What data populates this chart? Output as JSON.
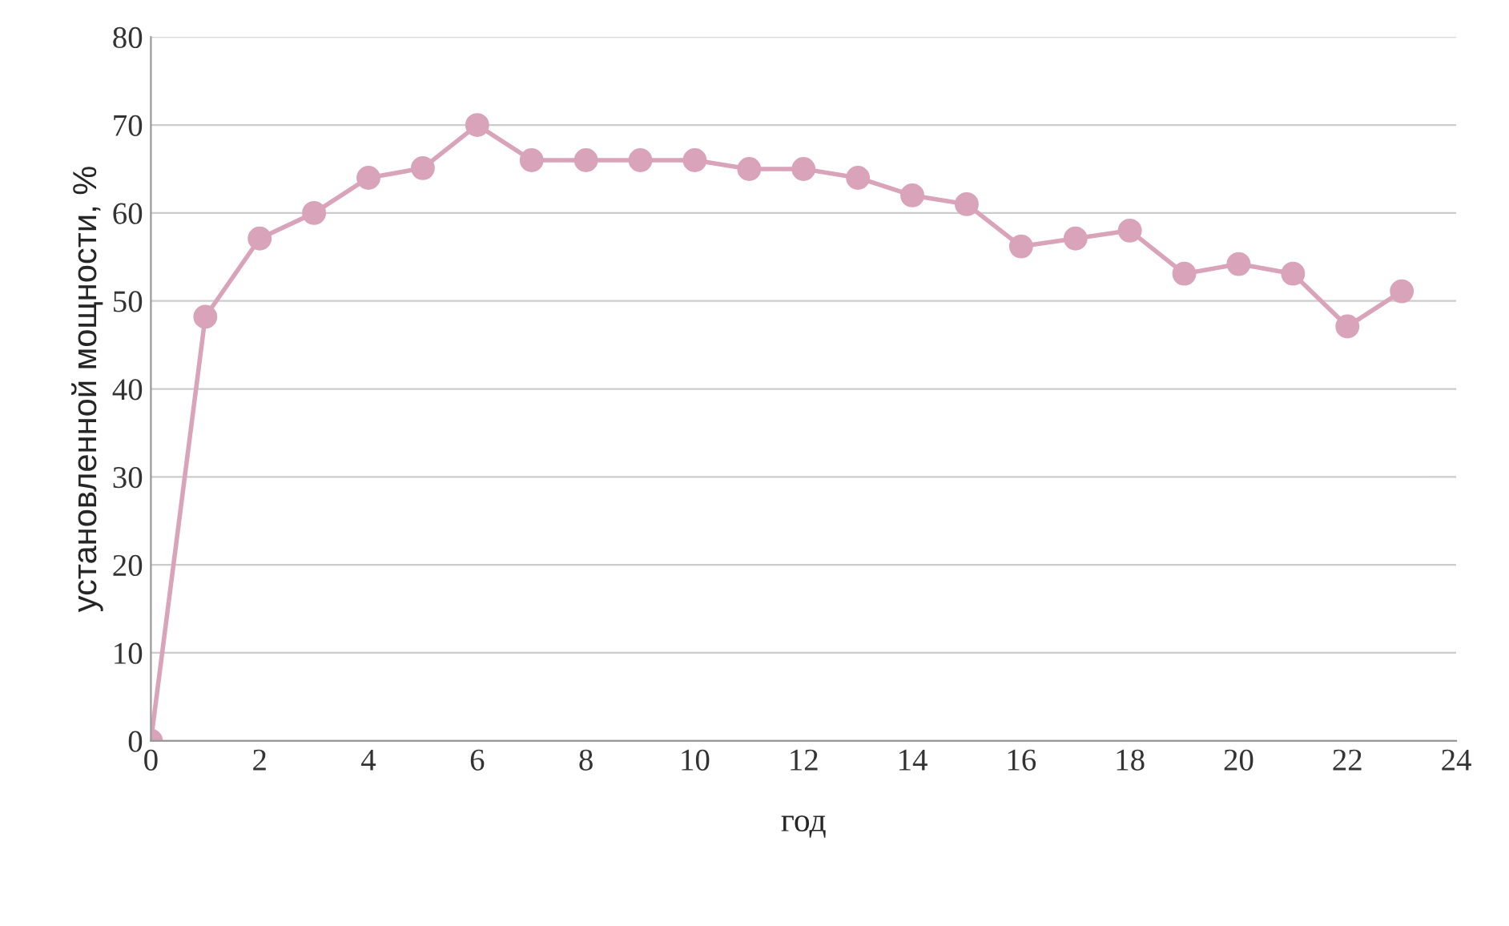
{
  "chart_data": {
    "type": "line",
    "xlabel": "год",
    "ylabel": "установленной мощности, %",
    "x": [
      0,
      1,
      2,
      3,
      4,
      5,
      6,
      7,
      8,
      9,
      10,
      11,
      12,
      13,
      14,
      15,
      16,
      17,
      18,
      19,
      20,
      21,
      22,
      23
    ],
    "series": [
      {
        "color": "#d9a3b9",
        "values": [
          0,
          48.2,
          57.1,
          60,
          64,
          65.1,
          70,
          66,
          66,
          66,
          66,
          65,
          65,
          64,
          62,
          61,
          56.2,
          57.1,
          58,
          53.1,
          54.2,
          53.1,
          47.1,
          51.1
        ]
      }
    ],
    "xlim": [
      0,
      24
    ],
    "xticks": [
      0,
      2,
      4,
      6,
      8,
      10,
      12,
      14,
      16,
      18,
      20,
      22,
      24
    ],
    "ylim": [
      0,
      80
    ],
    "yticks": [
      0,
      10,
      20,
      30,
      40,
      50,
      60,
      70,
      80
    ],
    "grid": "y",
    "marker": "circle",
    "line_style": "solid"
  }
}
